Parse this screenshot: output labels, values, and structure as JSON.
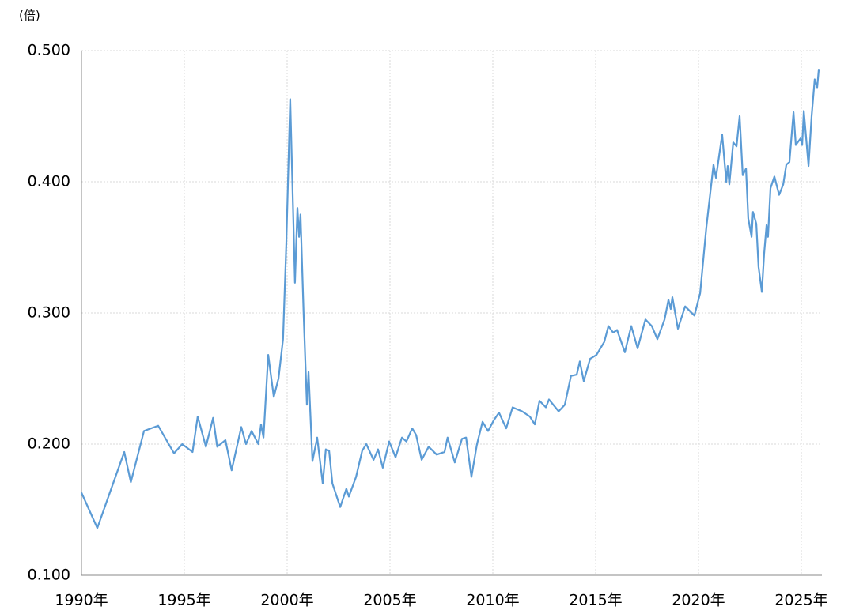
{
  "chart_data": {
    "type": "line",
    "y_label": "(倍)",
    "color": "#5b9bd5",
    "grid": true,
    "xlim": [
      1990,
      2026
    ],
    "xticks": [
      {
        "value": 1990,
        "label": "1990年"
      },
      {
        "value": 1995,
        "label": "1995年"
      },
      {
        "value": 2000,
        "label": "2000年"
      },
      {
        "value": 2005,
        "label": "2005年"
      },
      {
        "value": 2010,
        "label": "2010年"
      },
      {
        "value": 2015,
        "label": "2015年"
      },
      {
        "value": 2020,
        "label": "2020年"
      },
      {
        "value": 2025,
        "label": "2025年"
      }
    ],
    "ylim": [
      0.1,
      0.5
    ],
    "yticks": [
      {
        "value": 0.1,
        "label": "0.100"
      },
      {
        "value": 0.2,
        "label": "0.200"
      },
      {
        "value": 0.3,
        "label": "0.300"
      },
      {
        "value": 0.4,
        "label": "0.400"
      },
      {
        "value": 0.5,
        "label": "0.500"
      }
    ],
    "x": [
      1990.0,
      1990.77,
      1992.08,
      1992.4,
      1993.04,
      1993.73,
      1994.5,
      1994.9,
      1995.4,
      1995.65,
      1996.05,
      1996.4,
      1996.6,
      1997.0,
      1997.3,
      1997.77,
      1998.0,
      1998.27,
      1998.6,
      1998.73,
      1998.85,
      1999.08,
      1999.35,
      1999.58,
      1999.8,
      1999.96,
      2000.15,
      2000.38,
      2000.5,
      2000.58,
      2000.65,
      2000.8,
      2000.96,
      2001.04,
      2001.23,
      2001.46,
      2001.73,
      2001.88,
      2002.04,
      2002.2,
      2002.58,
      2002.88,
      2003.0,
      2003.35,
      2003.65,
      2003.85,
      2004.2,
      2004.42,
      2004.65,
      2004.96,
      2005.27,
      2005.58,
      2005.8,
      2006.08,
      2006.27,
      2006.54,
      2006.88,
      2007.27,
      2007.65,
      2007.8,
      2008.15,
      2008.5,
      2008.7,
      2008.96,
      2009.23,
      2009.5,
      2009.77,
      2010.04,
      2010.3,
      2010.65,
      2010.96,
      2011.42,
      2011.8,
      2012.04,
      2012.27,
      2012.58,
      2012.73,
      2013.2,
      2013.5,
      2013.8,
      2014.08,
      2014.23,
      2014.42,
      2014.73,
      2015.04,
      2015.42,
      2015.62,
      2015.85,
      2016.04,
      2016.42,
      2016.73,
      2017.04,
      2017.42,
      2017.73,
      2018.0,
      2018.35,
      2018.54,
      2018.65,
      2018.73,
      2019.0,
      2019.35,
      2019.8,
      2020.08,
      2020.38,
      2020.73,
      2020.85,
      2021.15,
      2021.35,
      2021.42,
      2021.5,
      2021.69,
      2021.85,
      2022.0,
      2022.15,
      2022.31,
      2022.42,
      2022.58,
      2022.65,
      2022.81,
      2022.92,
      2023.08,
      2023.19,
      2023.31,
      2023.38,
      2023.5,
      2023.69,
      2023.92,
      2024.12,
      2024.27,
      2024.42,
      2024.62,
      2024.73,
      2024.96,
      2025.04,
      2025.12,
      2025.35,
      2025.5,
      2025.65,
      2025.77,
      2025.85
    ],
    "values": [
      0.163,
      0.136,
      0.194,
      0.171,
      0.21,
      0.214,
      0.193,
      0.2,
      0.194,
      0.221,
      0.198,
      0.22,
      0.198,
      0.203,
      0.18,
      0.213,
      0.2,
      0.21,
      0.2,
      0.215,
      0.205,
      0.268,
      0.236,
      0.25,
      0.28,
      0.353,
      0.463,
      0.323,
      0.38,
      0.358,
      0.375,
      0.3,
      0.23,
      0.255,
      0.187,
      0.205,
      0.17,
      0.196,
      0.195,
      0.17,
      0.152,
      0.166,
      0.16,
      0.175,
      0.195,
      0.2,
      0.188,
      0.196,
      0.182,
      0.202,
      0.19,
      0.205,
      0.202,
      0.212,
      0.207,
      0.188,
      0.198,
      0.192,
      0.194,
      0.205,
      0.186,
      0.204,
      0.205,
      0.175,
      0.2,
      0.217,
      0.21,
      0.218,
      0.224,
      0.212,
      0.228,
      0.225,
      0.221,
      0.215,
      0.233,
      0.228,
      0.234,
      0.225,
      0.23,
      0.252,
      0.253,
      0.263,
      0.248,
      0.265,
      0.268,
      0.278,
      0.29,
      0.285,
      0.287,
      0.27,
      0.29,
      0.273,
      0.295,
      0.29,
      0.28,
      0.295,
      0.31,
      0.303,
      0.312,
      0.288,
      0.305,
      0.298,
      0.315,
      0.365,
      0.413,
      0.403,
      0.436,
      0.4,
      0.412,
      0.398,
      0.43,
      0.427,
      0.45,
      0.405,
      0.41,
      0.372,
      0.358,
      0.377,
      0.368,
      0.335,
      0.316,
      0.345,
      0.367,
      0.358,
      0.395,
      0.404,
      0.39,
      0.398,
      0.413,
      0.415,
      0.453,
      0.428,
      0.433,
      0.428,
      0.454,
      0.412,
      0.45,
      0.478,
      0.472,
      0.486
    ]
  }
}
